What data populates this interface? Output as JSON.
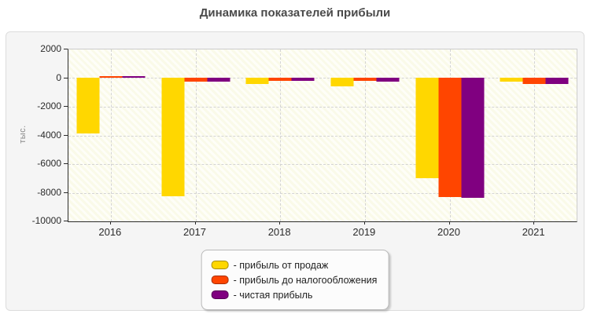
{
  "title": "Динамика показателей прибыли",
  "chart_data": {
    "type": "bar",
    "title": "Динамика показателей прибыли",
    "xlabel": "",
    "ylabel": "тыс.",
    "categories": [
      "2016",
      "2017",
      "2018",
      "2019",
      "2020",
      "2021"
    ],
    "series": [
      {
        "name": "- прибыль от продаж",
        "color": "#FFD700",
        "values": [
          -3850,
          -8250,
          -400,
          -550,
          -7000,
          -250
        ]
      },
      {
        "name": "- прибыль до налогообложения",
        "color": "#FF4500",
        "values": [
          150,
          -250,
          -180,
          -180,
          -8280,
          -400
        ]
      },
      {
        "name": "- чистая прибыль",
        "color": "#800080",
        "values": [
          130,
          -250,
          -180,
          -250,
          -8370,
          -400
        ]
      }
    ],
    "ylim": [
      -10000,
      2000
    ],
    "y_ticks": [
      2000,
      0,
      -2000,
      -4000,
      -6000,
      -8000,
      -10000
    ],
    "grid": true,
    "legend_position": "bottom-center"
  }
}
